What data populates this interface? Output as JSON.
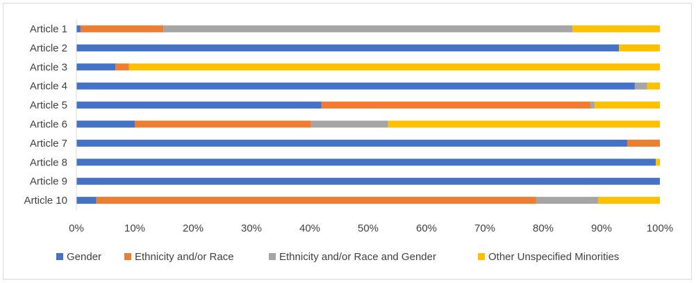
{
  "chart_data": {
    "type": "bar",
    "orientation": "horizontal",
    "stacked": "percent",
    "categories": [
      "Article 1",
      "Article 2",
      "Article 3",
      "Article 4",
      "Article 5",
      "Article 6",
      "Article 7",
      "Article 8",
      "Article 9",
      "Article 10"
    ],
    "series": [
      {
        "name": "Gender",
        "color": "#4472C4",
        "values": [
          0.7,
          93.0,
          6.7,
          95.7,
          42.0,
          10.0,
          94.4,
          99.3,
          100.0,
          3.4
        ]
      },
      {
        "name": "Ethnicity and/or Race",
        "color": "#ED7D31",
        "values": [
          14.2,
          0.0,
          2.3,
          0.0,
          46.1,
          30.2,
          5.6,
          0.0,
          0.0,
          75.4
        ]
      },
      {
        "name": "Ethnicity and/or Race and Gender",
        "color": "#A5A5A5",
        "values": [
          70.1,
          0.0,
          0.0,
          2.1,
          0.7,
          13.2,
          0.0,
          0.0,
          0.0,
          10.6
        ]
      },
      {
        "name": "Other Unspecified Minorities",
        "color": "#FFC000",
        "values": [
          15.0,
          7.0,
          91.0,
          2.2,
          11.2,
          46.6,
          0.0,
          0.7,
          0.0,
          10.6
        ]
      }
    ],
    "xlim": [
      0,
      100
    ],
    "x_ticks": [
      "0%",
      "10%",
      "20%",
      "30%",
      "40%",
      "50%",
      "60%",
      "70%",
      "80%",
      "90%",
      "100%"
    ],
    "title": "",
    "xlabel": "",
    "ylabel": "",
    "grid": false,
    "legend_position": "bottom"
  }
}
